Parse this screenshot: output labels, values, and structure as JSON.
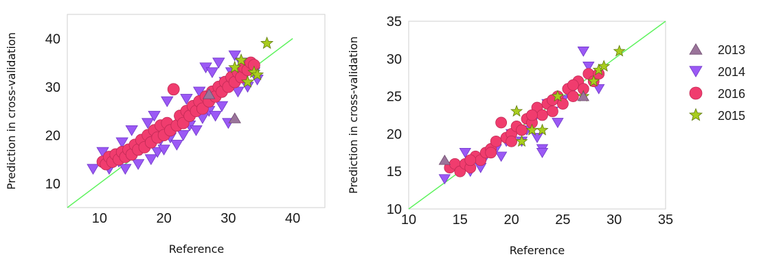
{
  "chart_data": [
    {
      "type": "scatter",
      "title": "",
      "xlabel": "Reference",
      "ylabel": "Prediction in cross-validation",
      "xlim": [
        5,
        45
      ],
      "ylim": [
        5,
        45
      ],
      "xticks": [
        "10",
        "20",
        "30",
        "40"
      ],
      "yticks": [
        "10",
        "20",
        "30",
        "40"
      ],
      "grid": false,
      "reference_line": {
        "from": [
          5,
          5
        ],
        "to": [
          40,
          40
        ],
        "color": "#5ef35e"
      },
      "series": [
        {
          "name": "2014",
          "marker": "triangle-down",
          "color": "#9b59f5",
          "points": [
            [
              9,
              13
            ],
            [
              10.5,
              16.5
            ],
            [
              11.5,
              13
            ],
            [
              12,
              15
            ],
            [
              13,
              14.5
            ],
            [
              13.5,
              18.5
            ],
            [
              14,
              13
            ],
            [
              14.5,
              16
            ],
            [
              15,
              21
            ],
            [
              16,
              14
            ],
            [
              16.5,
              17
            ],
            [
              17,
              18.5
            ],
            [
              17.5,
              22.5
            ],
            [
              18,
              15
            ],
            [
              18.5,
              24
            ],
            [
              19,
              16.5
            ],
            [
              19.5,
              19
            ],
            [
              20,
              17
            ],
            [
              20.5,
              27
            ],
            [
              21,
              19.5
            ],
            [
              22,
              18
            ],
            [
              22.5,
              23
            ],
            [
              23,
              20
            ],
            [
              23.5,
              27.5
            ],
            [
              24,
              22
            ],
            [
              25,
              21
            ],
            [
              25.5,
              29
            ],
            [
              26,
              23.5
            ],
            [
              26.5,
              34
            ],
            [
              27,
              25
            ],
            [
              27.5,
              33
            ],
            [
              28,
              24
            ],
            [
              28.5,
              35
            ],
            [
              29,
              26
            ],
            [
              29.5,
              31
            ],
            [
              30,
              22.5
            ],
            [
              30.5,
              33
            ],
            [
              31,
              36.5
            ],
            [
              31.5,
              29
            ],
            [
              32,
              35
            ],
            [
              33,
              30
            ],
            [
              33.5,
              34
            ],
            [
              34,
              33
            ],
            [
              34.5,
              31.5
            ]
          ]
        },
        {
          "name": "2016",
          "marker": "circle",
          "color": "#f03c6e",
          "points": [
            [
              10.5,
              14.5
            ],
            [
              11,
              14
            ],
            [
              11.5,
              15.5
            ],
            [
              12,
              14.5
            ],
            [
              12.5,
              16
            ],
            [
              13,
              15
            ],
            [
              13.5,
              16.5
            ],
            [
              14,
              15.5
            ],
            [
              14.5,
              17
            ],
            [
              15,
              16
            ],
            [
              15.5,
              18
            ],
            [
              16,
              17
            ],
            [
              16.5,
              19
            ],
            [
              17,
              17.5
            ],
            [
              17.5,
              20
            ],
            [
              18,
              18.5
            ],
            [
              18.5,
              21
            ],
            [
              19,
              19.5
            ],
            [
              19.5,
              22
            ],
            [
              20,
              20
            ],
            [
              20.5,
              22.5
            ],
            [
              21,
              21
            ],
            [
              21.5,
              29.5
            ],
            [
              22,
              22
            ],
            [
              22.5,
              24
            ],
            [
              23,
              22.5
            ],
            [
              23.5,
              25
            ],
            [
              24,
              24
            ],
            [
              24.5,
              26
            ],
            [
              25,
              25
            ],
            [
              25.5,
              27
            ],
            [
              26,
              25.5
            ],
            [
              26.5,
              28
            ],
            [
              27,
              27
            ],
            [
              27.5,
              29
            ],
            [
              28,
              28
            ],
            [
              28.5,
              30
            ],
            [
              29,
              29
            ],
            [
              29.5,
              31
            ],
            [
              30,
              30
            ],
            [
              30.5,
              32
            ],
            [
              31,
              31
            ],
            [
              31.5,
              33
            ],
            [
              32,
              32
            ],
            [
              32.5,
              34
            ],
            [
              33,
              33.5
            ],
            [
              33.5,
              35
            ],
            [
              34,
              34.5
            ]
          ]
        },
        {
          "name": "2015",
          "marker": "star",
          "color": "#a8cc1e",
          "points": [
            [
              31,
              34
            ],
            [
              32,
              35.5
            ],
            [
              33,
              31
            ],
            [
              34,
              33
            ],
            [
              34.5,
              32.5
            ],
            [
              36,
              39
            ]
          ]
        },
        {
          "name": "2013",
          "marker": "triangle-up",
          "color": "#9a749a",
          "points": [
            [
              31,
              23.5
            ],
            [
              27,
              28.5
            ]
          ]
        }
      ]
    },
    {
      "type": "scatter",
      "title": "",
      "xlabel": "Reference",
      "ylabel": "Prediction in cross-validation",
      "xlim": [
        10,
        35
      ],
      "ylim": [
        10,
        35
      ],
      "xticks": [
        "10",
        "15",
        "20",
        "25",
        "30",
        "35"
      ],
      "yticks": [
        "10",
        "15",
        "20",
        "25",
        "30",
        "35"
      ],
      "grid": false,
      "reference_line": {
        "from": [
          10,
          10
        ],
        "to": [
          35,
          35
        ],
        "color": "#5ef35e"
      },
      "series": [
        {
          "name": "2014",
          "marker": "triangle-down",
          "color": "#9b59f5",
          "points": [
            [
              13.5,
              14
            ],
            [
              15.5,
              17.5
            ],
            [
              16,
              15
            ],
            [
              17,
              15.5
            ],
            [
              17.5,
              17
            ],
            [
              18.5,
              18
            ],
            [
              19,
              17
            ],
            [
              19.5,
              19
            ],
            [
              20,
              20
            ],
            [
              21,
              19
            ],
            [
              21.5,
              20.5
            ],
            [
              22,
              21.5
            ],
            [
              22.5,
              19.5
            ],
            [
              23,
              18
            ],
            [
              23,
              17.5
            ],
            [
              24,
              23
            ],
            [
              24.5,
              21.5
            ],
            [
              25,
              24.5
            ],
            [
              25.5,
              25.5
            ],
            [
              26,
              26
            ],
            [
              27,
              31
            ],
            [
              27.5,
              29
            ],
            [
              28,
              27
            ],
            [
              28.5,
              26
            ],
            [
              23.5,
              24
            ]
          ]
        },
        {
          "name": "2016",
          "marker": "circle",
          "color": "#f03c6e",
          "points": [
            [
              14,
              15.5
            ],
            [
              14.5,
              16
            ],
            [
              15,
              15
            ],
            [
              15.5,
              16
            ],
            [
              16,
              15.5
            ],
            [
              16.5,
              17
            ],
            [
              17,
              16.5
            ],
            [
              17.5,
              17.5
            ],
            [
              18,
              18
            ],
            [
              18.5,
              19
            ],
            [
              19,
              21.5
            ],
            [
              19.5,
              19.5
            ],
            [
              20,
              20
            ],
            [
              20.5,
              21
            ],
            [
              21,
              20.5
            ],
            [
              21.5,
              22
            ],
            [
              22,
              21.5
            ],
            [
              22.5,
              23.5
            ],
            [
              23,
              22.5
            ],
            [
              23.5,
              24
            ],
            [
              24,
              23
            ],
            [
              24.5,
              25
            ],
            [
              25,
              24
            ],
            [
              25.5,
              26
            ],
            [
              26,
              25
            ],
            [
              26.5,
              27
            ],
            [
              27,
              26
            ],
            [
              27.5,
              28
            ],
            [
              28,
              27
            ],
            [
              28.5,
              28
            ],
            [
              16,
              16.5
            ],
            [
              18,
              17.5
            ],
            [
              20,
              19
            ],
            [
              22,
              22.5
            ],
            [
              24,
              24.5
            ],
            [
              26,
              26.5
            ]
          ]
        },
        {
          "name": "2015",
          "marker": "star",
          "color": "#a8cc1e",
          "points": [
            [
              20.5,
              23
            ],
            [
              21,
              19
            ],
            [
              22,
              20.5
            ],
            [
              23,
              20.5
            ],
            [
              24.5,
              25
            ],
            [
              27,
              25
            ],
            [
              28,
              27
            ],
            [
              28.5,
              28.5
            ],
            [
              29,
              29
            ],
            [
              30.5,
              31
            ]
          ]
        },
        {
          "name": "2013",
          "marker": "triangle-up",
          "color": "#9a749a",
          "points": [
            [
              13.5,
              16.5
            ],
            [
              27,
              25
            ]
          ]
        }
      ]
    }
  ],
  "legend": {
    "placement": "right",
    "items": [
      {
        "label": "2013",
        "marker": "triangle-up",
        "color": "#9a749a"
      },
      {
        "label": "2014",
        "marker": "triangle-down",
        "color": "#9b59f5"
      },
      {
        "label": "2016",
        "marker": "circle",
        "color": "#f03c6e"
      },
      {
        "label": "2015",
        "marker": "star",
        "color": "#a8cc1e"
      }
    ]
  }
}
